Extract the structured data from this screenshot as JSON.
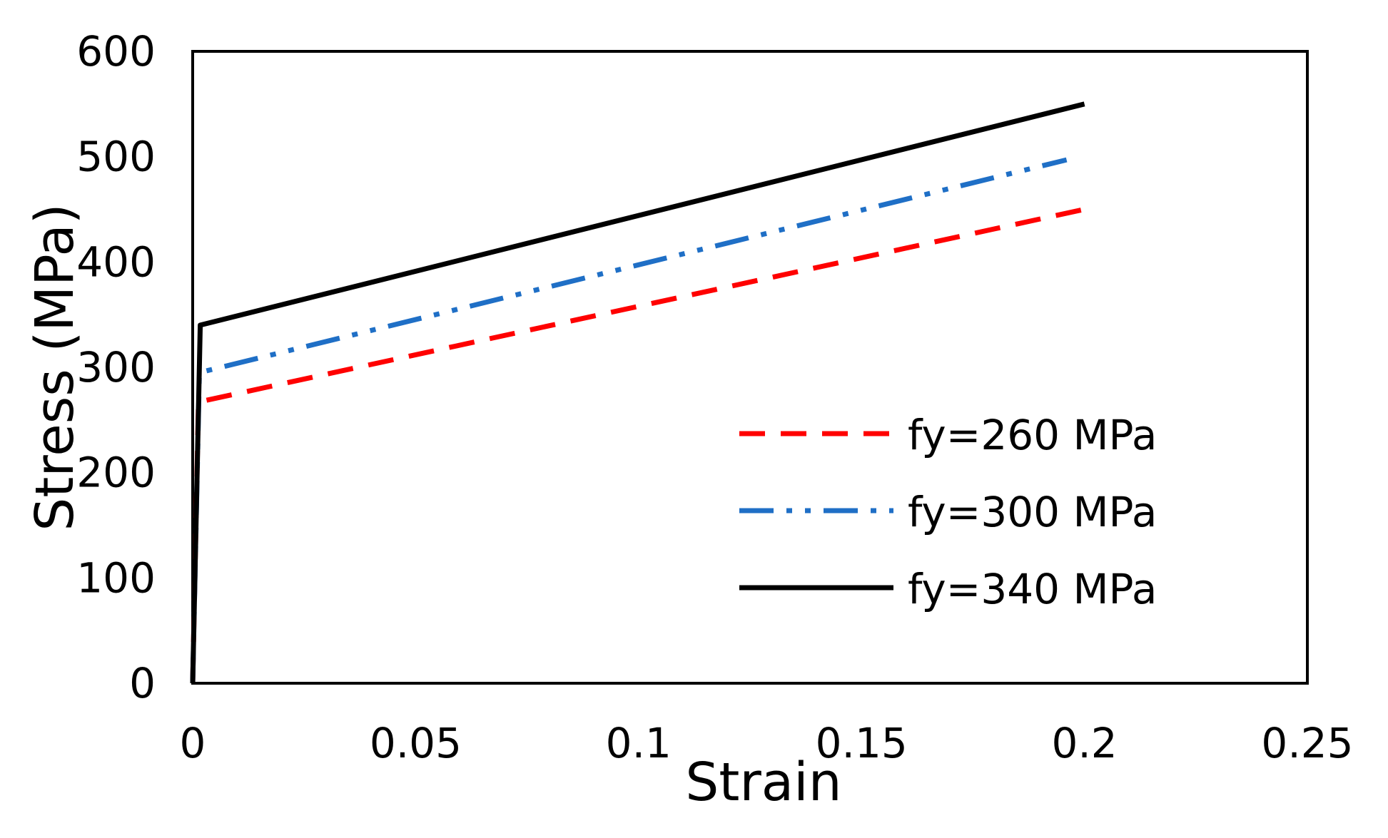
{
  "chart_data": {
    "type": "line",
    "title": "",
    "xlabel": "Strain",
    "ylabel": "Stress (MPa)",
    "xlim": [
      0,
      0.25
    ],
    "ylim": [
      0,
      600
    ],
    "xticks": [
      0,
      0.05,
      0.1,
      0.15,
      0.2,
      0.25
    ],
    "xtick_labels": [
      "0",
      "0.05",
      "0.1",
      "0.15",
      "0.2",
      "0.25"
    ],
    "yticks": [
      0,
      100,
      200,
      300,
      400,
      500,
      600
    ],
    "ytick_labels": [
      "0",
      "100",
      "200",
      "300",
      "400",
      "500",
      "600"
    ],
    "grid": false,
    "legend_position": "bottom-right",
    "series": [
      {
        "name": "fy=260 MPa",
        "color": "#ff0000",
        "style": "dashed",
        "x": [
          0,
          0.0013,
          0.2
        ],
        "y": [
          0,
          267,
          450
        ]
      },
      {
        "name": "fy=300 MPa",
        "color": "#1f6fc6",
        "style": "dash-dot-dot",
        "x": [
          0,
          0.0015,
          0.196
        ],
        "y": [
          0,
          295,
          497
        ]
      },
      {
        "name": "fy=340 MPa",
        "color": "#000000",
        "style": "solid",
        "x": [
          0,
          0.0017,
          0.2
        ],
        "y": [
          0,
          340,
          550
        ]
      }
    ]
  }
}
